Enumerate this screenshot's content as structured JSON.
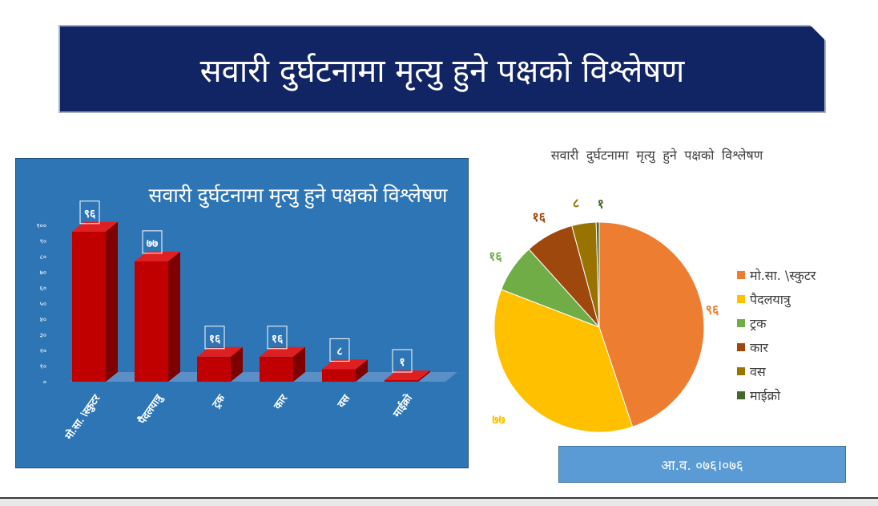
{
  "banner": {
    "title": "सवारी दुर्घटनामा मृत्यु हुने पक्षको विश्लेषण"
  },
  "bar_chart": {
    "title": "सवारी दुर्घटनामा मृत्यु हुने पक्षको विश्लेषण",
    "yticks": [
      "०",
      "१०",
      "२०",
      "३०",
      "४०",
      "५०",
      "६०",
      "७०",
      "८०",
      "९०",
      "१००"
    ],
    "data_labels": [
      "९६",
      "७७",
      "१६",
      "१६",
      "८",
      "१"
    ]
  },
  "pie_chart": {
    "title": "सवारी दुर्घटनामा मृत्यु हुने पक्षको विश्लेषण",
    "data_labels": [
      "९६",
      "७७",
      "१६",
      "१६",
      "८",
      "१"
    ]
  },
  "chart_data": [
    {
      "type": "bar",
      "title": "सवारी दुर्घटनामा मृत्यु हुने पक्षको विश्लेषण",
      "categories": [
        "मो.सा. \\स्कुटर",
        "पैदलयात्रु",
        "ट्रक",
        "कार",
        "वस",
        "माईक्रो"
      ],
      "values": [
        96,
        77,
        16,
        16,
        8,
        1
      ],
      "ylim": [
        0,
        100
      ],
      "grid": false,
      "color": "#c00000"
    },
    {
      "type": "pie",
      "title": "सवारी दुर्घटनामा मृत्यु हुने पक्षको विश्लेषण",
      "categories": [
        "मो.सा. \\स्कुटर",
        "पैदलयात्रु",
        "ट्रक",
        "कार",
        "वस",
        "माईक्रो"
      ],
      "values": [
        96,
        77,
        16,
        16,
        8,
        1
      ],
      "colors": [
        "#ed7d31",
        "#ffc000",
        "#70ad47",
        "#9e480e",
        "#997300",
        "#43682b"
      ],
      "legend": "right"
    }
  ],
  "fiscal_year": "आ.व. ०७६।०७६"
}
